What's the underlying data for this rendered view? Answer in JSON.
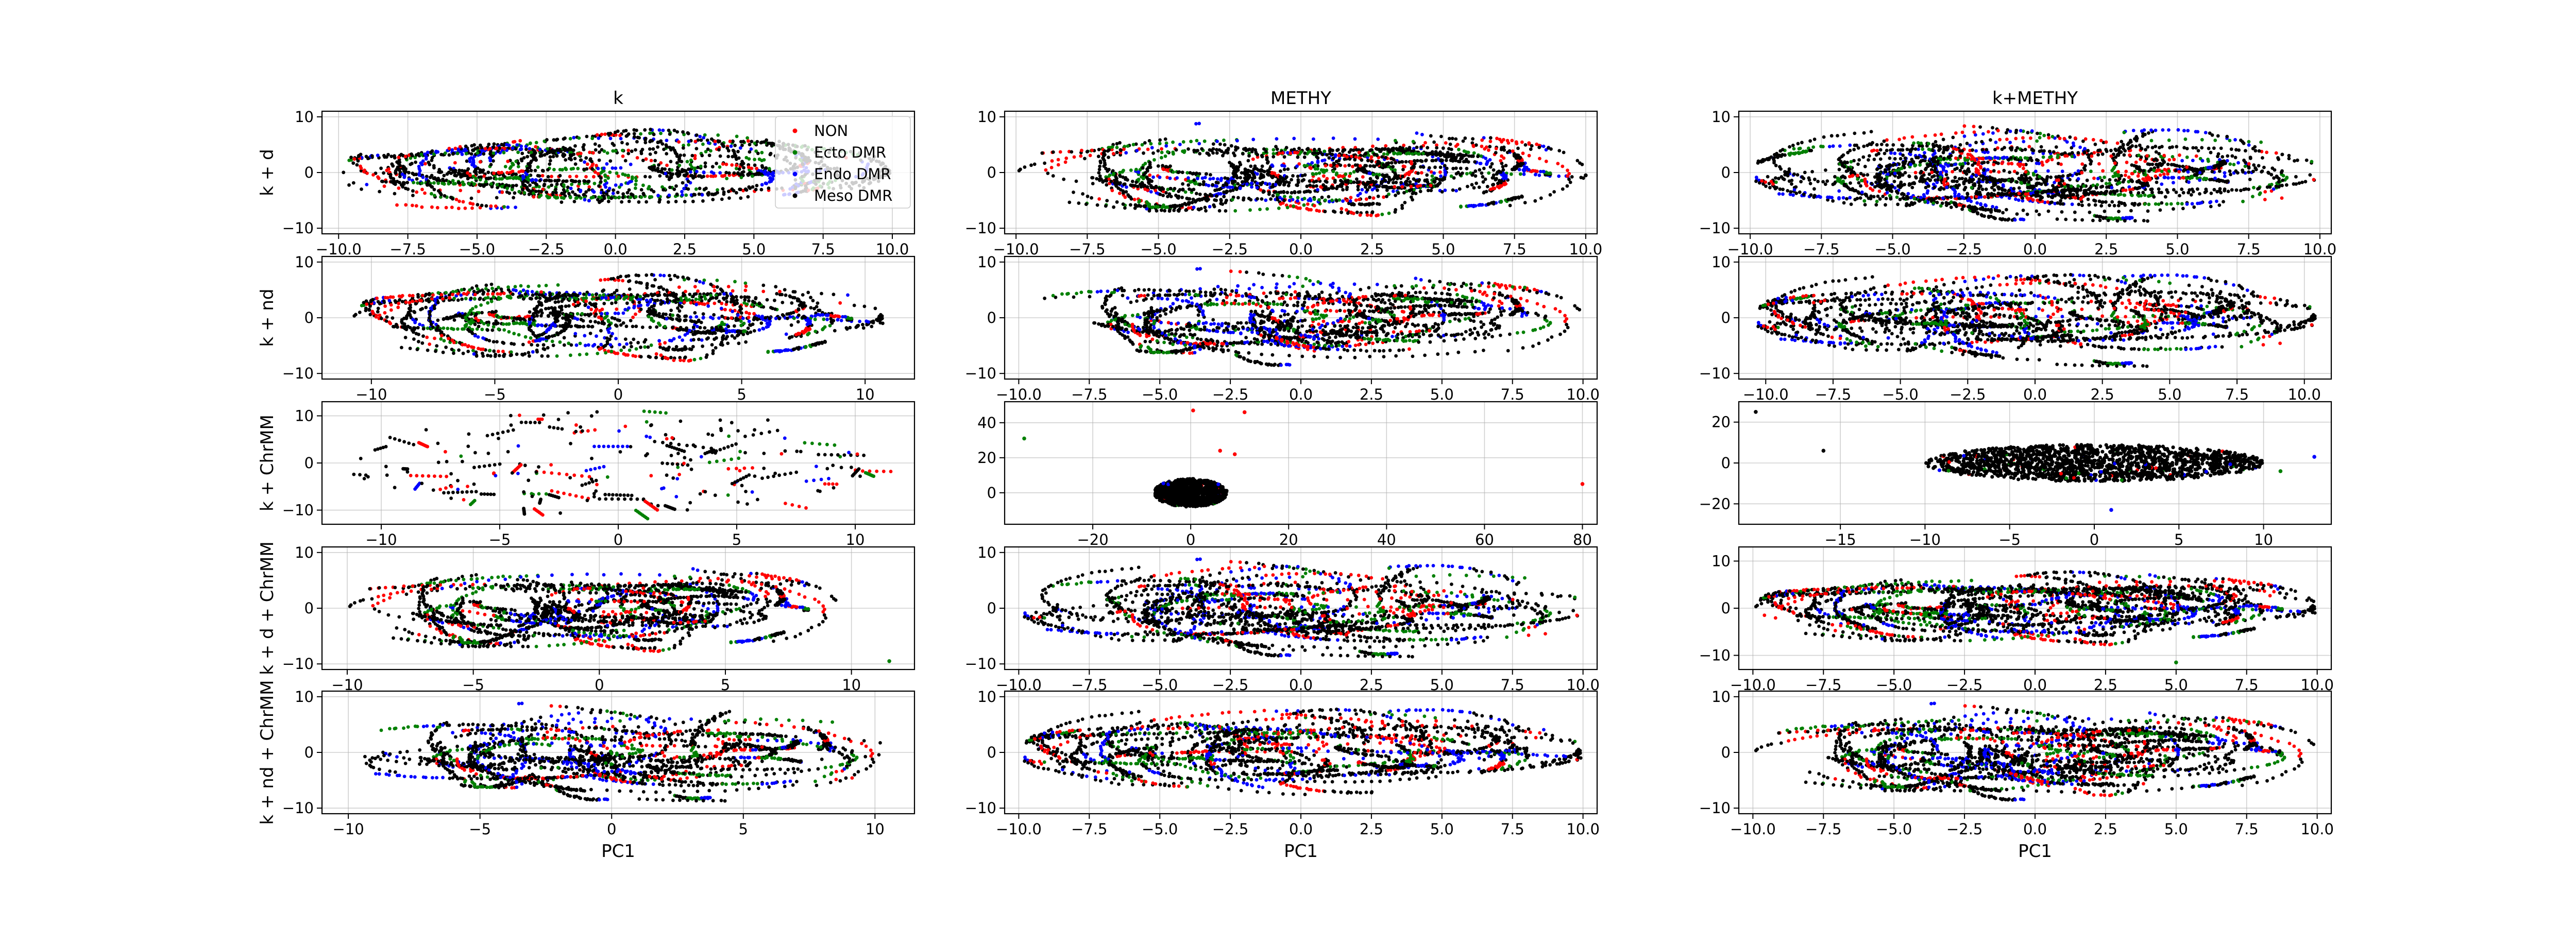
{
  "chart_data": {
    "type": "scatter",
    "column_titles": [
      "k",
      "METHY",
      "k+METHY"
    ],
    "row_labels": [
      "k + d",
      "k + nd",
      "k + ChrMM",
      "k + d + ChrMM",
      "k + nd + ChrMM"
    ],
    "xlabel": "PC1",
    "grid": true,
    "legend": {
      "location": "upper-right of top-left panel",
      "entries": [
        {
          "name": "NON",
          "color": "#ff0000"
        },
        {
          "name": "Ecto DMR",
          "color": "#008000"
        },
        {
          "name": "Endo DMR",
          "color": "#0000ff"
        },
        {
          "name": "Meso DMR",
          "color": "#000000"
        }
      ]
    },
    "panels": [
      {
        "row": 0,
        "col": 0,
        "xlim": [
          -10.6,
          10.8
        ],
        "ylim": [
          -11,
          11
        ],
        "xticks": [
          -10,
          -7.5,
          -5,
          -2.5,
          0,
          2.5,
          5,
          7.5,
          10
        ],
        "xtick_labels": [
          "−10.0",
          "−7.5",
          "−5.0",
          "−2.5",
          "0.0",
          "2.5",
          "5.0",
          "7.5",
          "10.0"
        ],
        "yticks": [
          -10,
          0,
          10
        ],
        "ytick_labels": [
          "−10",
          "0",
          "10"
        ],
        "cloud": {
          "x_range": [
            -10,
            10
          ],
          "y_range": [
            -9.5,
            9.5
          ],
          "style": "curves",
          "density": 2000
        },
        "outliers": []
      },
      {
        "row": 0,
        "col": 1,
        "xlim": [
          -10.4,
          10.4
        ],
        "ylim": [
          -11,
          11
        ],
        "xticks": [
          -10,
          -7.5,
          -5,
          -2.5,
          0,
          2.5,
          5,
          7.5,
          10
        ],
        "xtick_labels": [
          "−10.0",
          "−7.5",
          "−5.0",
          "−2.5",
          "0.0",
          "2.5",
          "5.0",
          "7.5",
          "10.0"
        ],
        "yticks": [
          -10,
          0,
          10
        ],
        "ytick_labels": [
          "−10",
          "0",
          "10"
        ],
        "cloud": {
          "x_range": [
            -10,
            10
          ],
          "y_range": [
            -9.5,
            9.5
          ],
          "style": "curves",
          "density": 2300
        },
        "outliers": [
          {
            "x": 10.0,
            "y": -0.5,
            "series": 3
          }
        ]
      },
      {
        "row": 0,
        "col": 2,
        "xlim": [
          -10.4,
          10.4
        ],
        "ylim": [
          -11,
          11
        ],
        "xticks": [
          -10,
          -7.5,
          -5,
          -2.5,
          0,
          2.5,
          5,
          7.5,
          10
        ],
        "xtick_labels": [
          "−10.0",
          "−7.5",
          "−5.0",
          "−2.5",
          "0.0",
          "2.5",
          "5.0",
          "7.5",
          "10.0"
        ],
        "yticks": [
          -10,
          0,
          10
        ],
        "ytick_labels": [
          "−10",
          "0",
          "10"
        ],
        "cloud": {
          "x_range": [
            -10,
            10
          ],
          "y_range": [
            -9.5,
            9.5
          ],
          "style": "curves",
          "density": 2600
        },
        "outliers": []
      },
      {
        "row": 1,
        "col": 0,
        "xlim": [
          -12,
          12
        ],
        "ylim": [
          -11,
          11
        ],
        "xticks": [
          -10,
          -5,
          0,
          5,
          10
        ],
        "xtick_labels": [
          "−10",
          "−5",
          "0",
          "5",
          "10"
        ],
        "yticks": [
          -10,
          0,
          10
        ],
        "ytick_labels": [
          "−10",
          "0",
          "10"
        ],
        "cloud": {
          "x_range": [
            -10.8,
            10.8
          ],
          "y_range": [
            -9.5,
            9.5
          ],
          "style": "curves",
          "density": 2100
        },
        "outliers": []
      },
      {
        "row": 1,
        "col": 1,
        "xlim": [
          -10.5,
          10.5
        ],
        "ylim": [
          -11,
          11
        ],
        "xticks": [
          -10,
          -7.5,
          -5,
          -2.5,
          0,
          2.5,
          5,
          7.5,
          10
        ],
        "xtick_labels": [
          "−10.0",
          "−7.5",
          "−5.0",
          "−2.5",
          "0.0",
          "2.5",
          "5.0",
          "7.5",
          "10.0"
        ],
        "yticks": [
          -10,
          0,
          10
        ],
        "ytick_labels": [
          "−10",
          "0",
          "10"
        ],
        "cloud": {
          "x_range": [
            -10,
            10
          ],
          "y_range": [
            -9.5,
            9.5
          ],
          "style": "curves",
          "density": 2200
        },
        "outliers": []
      },
      {
        "row": 1,
        "col": 2,
        "xlim": [
          -11,
          11
        ],
        "ylim": [
          -11,
          11
        ],
        "xticks": [
          -10,
          -7.5,
          -5,
          -2.5,
          0,
          2.5,
          5,
          7.5,
          10
        ],
        "xtick_labels": [
          "−10.0",
          "−7.5",
          "−5.0",
          "−2.5",
          "0.0",
          "2.5",
          "5.0",
          "7.5",
          "10.0"
        ],
        "yticks": [
          -10,
          0,
          10
        ],
        "ytick_labels": [
          "−10",
          "0",
          "10"
        ],
        "cloud": {
          "x_range": [
            -10.5,
            10.5
          ],
          "y_range": [
            -9.5,
            9.5
          ],
          "style": "curves",
          "density": 2500
        },
        "outliers": []
      },
      {
        "row": 2,
        "col": 0,
        "xlim": [
          -12.5,
          12.5
        ],
        "ylim": [
          -13,
          13
        ],
        "xticks": [
          -10,
          -5,
          0,
          5,
          10
        ],
        "xtick_labels": [
          "−10",
          "−5",
          "0",
          "5",
          "10"
        ],
        "yticks": [
          -10,
          0,
          10
        ],
        "ytick_labels": [
          "−10",
          "0",
          "10"
        ],
        "cloud": {
          "x_range": [
            -11.5,
            11.5
          ],
          "y_range": [
            -11,
            11
          ],
          "style": "sparse",
          "density": 520
        },
        "outliers": []
      },
      {
        "row": 2,
        "col": 1,
        "xlim": [
          -38,
          83
        ],
        "ylim": [
          -18,
          52
        ],
        "xticks": [
          -20,
          0,
          20,
          40,
          60,
          80
        ],
        "xtick_labels": [
          "−20",
          "0",
          "20",
          "40",
          "60",
          "80"
        ],
        "yticks": [
          0,
          20,
          40
        ],
        "ytick_labels": [
          "0",
          "20",
          "40"
        ],
        "cloud": {
          "x_range": [
            -7.5,
            7.5
          ],
          "y_range": [
            -8,
            8
          ],
          "style": "dense",
          "density": 1200
        },
        "outliers": [
          {
            "x": -34,
            "y": 31,
            "series": 1
          },
          {
            "x": 0.5,
            "y": 47,
            "series": 0
          },
          {
            "x": 11,
            "y": 46,
            "series": 0
          },
          {
            "x": 6,
            "y": 24,
            "series": 0
          },
          {
            "x": 9,
            "y": 22,
            "series": 0
          },
          {
            "x": 80,
            "y": 5,
            "series": 0
          }
        ]
      },
      {
        "row": 2,
        "col": 2,
        "xlim": [
          -21,
          14
        ],
        "ylim": [
          -30,
          30
        ],
        "xticks": [
          -15,
          -10,
          -5,
          0,
          5,
          10
        ],
        "xtick_labels": [
          "−15",
          "−10",
          "−5",
          "0",
          "5",
          "10"
        ],
        "yticks": [
          -20,
          0,
          20
        ],
        "ytick_labels": [
          "−20",
          "0",
          "20"
        ],
        "cloud": {
          "x_range": [
            -10,
            10
          ],
          "y_range": [
            -9,
            9
          ],
          "style": "dense",
          "density": 1600
        },
        "outliers": [
          {
            "x": -20,
            "y": 25,
            "series": 3
          },
          {
            "x": -16,
            "y": 6,
            "series": 3
          },
          {
            "x": 13,
            "y": 3,
            "series": 2
          },
          {
            "x": 1,
            "y": -23,
            "series": 2
          },
          {
            "x": 11,
            "y": -4,
            "series": 1
          }
        ]
      },
      {
        "row": 3,
        "col": 0,
        "xlim": [
          -11,
          12.5
        ],
        "ylim": [
          -11,
          11
        ],
        "xticks": [
          -10,
          -5,
          0,
          5,
          10
        ],
        "xtick_labels": [
          "−10",
          "−5",
          "0",
          "5",
          "10"
        ],
        "yticks": [
          -10,
          0,
          10
        ],
        "ytick_labels": [
          "−10",
          "0",
          "10"
        ],
        "cloud": {
          "x_range": [
            -10,
            9.5
          ],
          "y_range": [
            -9.5,
            9.5
          ],
          "style": "curves",
          "density": 2300
        },
        "outliers": [
          {
            "x": 11.5,
            "y": -9.5,
            "series": 1
          }
        ]
      },
      {
        "row": 3,
        "col": 1,
        "xlim": [
          -10.5,
          10.5
        ],
        "ylim": [
          -11,
          11
        ],
        "xticks": [
          -10,
          -7.5,
          -5,
          -2.5,
          0,
          2.5,
          5,
          7.5,
          10
        ],
        "xtick_labels": [
          "−10.0",
          "−7.5",
          "−5.0",
          "−2.5",
          "0.0",
          "2.5",
          "5.0",
          "7.5",
          "10.0"
        ],
        "yticks": [
          -10,
          0,
          10
        ],
        "ytick_labels": [
          "−10",
          "0",
          "10"
        ],
        "cloud": {
          "x_range": [
            -10,
            10
          ],
          "y_range": [
            -9.5,
            9.5
          ],
          "style": "curves",
          "density": 2500
        },
        "outliers": []
      },
      {
        "row": 3,
        "col": 2,
        "xlim": [
          -10.5,
          10.5
        ],
        "ylim": [
          -13,
          13
        ],
        "xticks": [
          -10,
          -7.5,
          -5,
          -2.5,
          0,
          2.5,
          5,
          7.5,
          10
        ],
        "xtick_labels": [
          "−10.0",
          "−7.5",
          "−5.0",
          "−2.5",
          "0.0",
          "2.5",
          "5.0",
          "7.5",
          "10.0"
        ],
        "yticks": [
          -10,
          0,
          10
        ],
        "ytick_labels": [
          "−10",
          "0",
          "10"
        ],
        "cloud": {
          "x_range": [
            -10,
            10
          ],
          "y_range": [
            -9.5,
            9.5
          ],
          "style": "curves",
          "density": 2900
        },
        "outliers": [
          {
            "x": 5,
            "y": -11.5,
            "series": 1
          }
        ]
      },
      {
        "row": 4,
        "col": 0,
        "xlim": [
          -11,
          11.5
        ],
        "ylim": [
          -11,
          11
        ],
        "xticks": [
          -10,
          -5,
          0,
          5,
          10
        ],
        "xtick_labels": [
          "−10",
          "−5",
          "0",
          "5",
          "10"
        ],
        "yticks": [
          -10,
          0,
          10
        ],
        "ytick_labels": [
          "−10",
          "0",
          "10"
        ],
        "cloud": {
          "x_range": [
            -10,
            10.5
          ],
          "y_range": [
            -9.5,
            9.5
          ],
          "style": "curves",
          "density": 2300
        },
        "outliers": []
      },
      {
        "row": 4,
        "col": 1,
        "xlim": [
          -10.5,
          10.5
        ],
        "ylim": [
          -11,
          11
        ],
        "xticks": [
          -10,
          -7.5,
          -5,
          -2.5,
          0,
          2.5,
          5,
          7.5,
          10
        ],
        "xtick_labels": [
          "−10.0",
          "−7.5",
          "−5.0",
          "−2.5",
          "0.0",
          "2.5",
          "5.0",
          "7.5",
          "10.0"
        ],
        "yticks": [
          -10,
          0,
          10
        ],
        "ytick_labels": [
          "−10",
          "0",
          "10"
        ],
        "cloud": {
          "x_range": [
            -10,
            10
          ],
          "y_range": [
            -9.5,
            9.5
          ],
          "style": "curves",
          "density": 2500
        },
        "outliers": []
      },
      {
        "row": 4,
        "col": 2,
        "xlim": [
          -10.5,
          10.5
        ],
        "ylim": [
          -11,
          11
        ],
        "xticks": [
          -10,
          -7.5,
          -5,
          -2.5,
          0,
          2.5,
          5,
          7.5,
          10
        ],
        "xtick_labels": [
          "−10.0",
          "−7.5",
          "−5.0",
          "−2.5",
          "0.0",
          "2.5",
          "5.0",
          "7.5",
          "10.0"
        ],
        "yticks": [
          -10,
          0,
          10
        ],
        "ytick_labels": [
          "−10",
          "0",
          "10"
        ],
        "cloud": {
          "x_range": [
            -10,
            10
          ],
          "y_range": [
            -9.5,
            9.5
          ],
          "style": "curves",
          "density": 2900
        },
        "outliers": []
      }
    ]
  }
}
